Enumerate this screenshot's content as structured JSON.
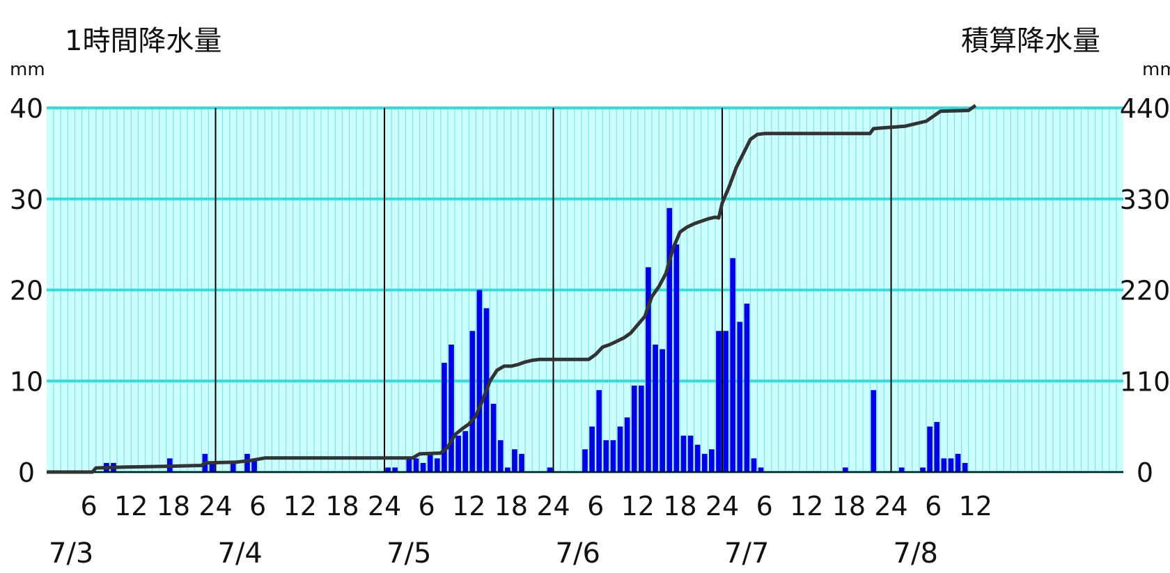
{
  "chart_data": {
    "type": "bar",
    "title_left": "1時間降水量",
    "title_right": "積算降水量",
    "unit_left": "mm",
    "unit_right": "mm",
    "x_hours": 153,
    "y_left": {
      "min": 0,
      "max": 40,
      "ticks": [
        "0",
        "10",
        "20",
        "30",
        "40"
      ]
    },
    "y_right": {
      "min": 0,
      "max": 440,
      "ticks": [
        "0",
        "110",
        "220",
        "330",
        "440"
      ]
    },
    "x_tick_labels": [
      {
        "hour": 6,
        "label": "6"
      },
      {
        "hour": 12,
        "label": "12"
      },
      {
        "hour": 18,
        "label": "18"
      },
      {
        "hour": 24,
        "label": "24"
      },
      {
        "hour": 30,
        "label": "6"
      },
      {
        "hour": 36,
        "label": "12"
      },
      {
        "hour": 42,
        "label": "18"
      },
      {
        "hour": 48,
        "label": "24"
      },
      {
        "hour": 54,
        "label": "6"
      },
      {
        "hour": 60,
        "label": "12"
      },
      {
        "hour": 66,
        "label": "18"
      },
      {
        "hour": 72,
        "label": "24"
      },
      {
        "hour": 78,
        "label": "6"
      },
      {
        "hour": 84,
        "label": "12"
      },
      {
        "hour": 90,
        "label": "18"
      },
      {
        "hour": 96,
        "label": "24"
      },
      {
        "hour": 102,
        "label": "6"
      },
      {
        "hour": 108,
        "label": "12"
      },
      {
        "hour": 114,
        "label": "18"
      },
      {
        "hour": 120,
        "label": "24"
      },
      {
        "hour": 126,
        "label": "6"
      },
      {
        "hour": 132,
        "label": "12"
      }
    ],
    "date_labels": [
      {
        "hour": 0,
        "label": "7/3"
      },
      {
        "hour": 24,
        "label": "7/4"
      },
      {
        "hour": 48,
        "label": "7/5"
      },
      {
        "hour": 72,
        "label": "7/6"
      },
      {
        "hour": 96,
        "label": "7/7"
      },
      {
        "hour": 120,
        "label": "7/8"
      }
    ],
    "day_boundaries": [
      24,
      48,
      72,
      96,
      120
    ],
    "bars": [
      [
        9,
        1.0
      ],
      [
        10,
        1.0
      ],
      [
        18,
        1.5
      ],
      [
        23,
        2.0
      ],
      [
        24,
        1.0
      ],
      [
        27,
        1.0
      ],
      [
        29,
        2.0
      ],
      [
        30,
        1.5
      ],
      [
        49,
        0.5
      ],
      [
        50,
        0.5
      ],
      [
        52,
        1.5
      ],
      [
        53,
        1.5
      ],
      [
        54,
        1.0
      ],
      [
        55,
        2.0
      ],
      [
        56,
        1.5
      ],
      [
        57,
        12.0
      ],
      [
        58,
        14.0
      ],
      [
        59,
        4.0
      ],
      [
        60,
        4.5
      ],
      [
        61,
        15.5
      ],
      [
        62,
        20.0
      ],
      [
        63,
        18.0
      ],
      [
        64,
        7.5
      ],
      [
        65,
        3.5
      ],
      [
        66,
        0.5
      ],
      [
        67,
        2.5
      ],
      [
        68,
        2.0
      ],
      [
        72,
        0.5
      ],
      [
        77,
        2.5
      ],
      [
        78,
        5.0
      ],
      [
        79,
        9.0
      ],
      [
        80,
        3.5
      ],
      [
        81,
        3.5
      ],
      [
        82,
        5.0
      ],
      [
        83,
        6.0
      ],
      [
        84,
        9.5
      ],
      [
        85,
        9.5
      ],
      [
        86,
        22.5
      ],
      [
        87,
        14.0
      ],
      [
        88,
        13.5
      ],
      [
        89,
        29.0
      ],
      [
        90,
        25.0
      ],
      [
        91,
        4.0
      ],
      [
        92,
        4.0
      ],
      [
        93,
        3.0
      ],
      [
        94,
        2.0
      ],
      [
        95,
        2.5
      ],
      [
        96,
        15.5
      ],
      [
        97,
        15.5
      ],
      [
        98,
        23.5
      ],
      [
        99,
        16.5
      ],
      [
        100,
        18.5
      ],
      [
        101,
        1.5
      ],
      [
        102,
        0.5
      ],
      [
        114,
        0.5
      ],
      [
        118,
        9.0
      ],
      [
        122,
        0.5
      ],
      [
        125,
        0.5
      ],
      [
        126,
        5.0
      ],
      [
        127,
        5.5
      ],
      [
        128,
        1.5
      ],
      [
        129,
        1.5
      ],
      [
        130,
        2.0
      ],
      [
        131,
        1.0
      ]
    ],
    "cumulative": [
      [
        0,
        0
      ],
      [
        6.5,
        0
      ],
      [
        7,
        5
      ],
      [
        11,
        6
      ],
      [
        17,
        7
      ],
      [
        22,
        8
      ],
      [
        22.5,
        11
      ],
      [
        27,
        12
      ],
      [
        29,
        14
      ],
      [
        31,
        17
      ],
      [
        52,
        17
      ],
      [
        53,
        22
      ],
      [
        56,
        23
      ],
      [
        57,
        30
      ],
      [
        58,
        45
      ],
      [
        59,
        52
      ],
      [
        60,
        58
      ],
      [
        61,
        68
      ],
      [
        62,
        88
      ],
      [
        63,
        110
      ],
      [
        64,
        123
      ],
      [
        65,
        128
      ],
      [
        66,
        128
      ],
      [
        67,
        130
      ],
      [
        68,
        133
      ],
      [
        69,
        135
      ],
      [
        70,
        136
      ],
      [
        77,
        136
      ],
      [
        78,
        142
      ],
      [
        79,
        151
      ],
      [
        80,
        154
      ],
      [
        81,
        158
      ],
      [
        82,
        162
      ],
      [
        83,
        168
      ],
      [
        84,
        178
      ],
      [
        85,
        188
      ],
      [
        86,
        212
      ],
      [
        87,
        224
      ],
      [
        88,
        240
      ],
      [
        89,
        270
      ],
      [
        90,
        290
      ],
      [
        91,
        296
      ],
      [
        92,
        300
      ],
      [
        93,
        303
      ],
      [
        94,
        306
      ],
      [
        95,
        308
      ],
      [
        95.5,
        307
      ],
      [
        96,
        325
      ],
      [
        97,
        345
      ],
      [
        98,
        368
      ],
      [
        99,
        385
      ],
      [
        100,
        402
      ],
      [
        101,
        408
      ],
      [
        102,
        409
      ],
      [
        117,
        409
      ],
      [
        117.5,
        415
      ],
      [
        122,
        418
      ],
      [
        125,
        424
      ],
      [
        126,
        430
      ],
      [
        127,
        436
      ],
      [
        131,
        437
      ],
      [
        132,
        443
      ]
    ],
    "colors": {
      "background": "#ffffff",
      "plot_background": "#ccffff",
      "gridline": "#33dddd",
      "bar": "#0000e6",
      "cumulative_line": "#333333",
      "day_line": "#000000",
      "hour_line": "#88e0e0"
    },
    "grid": true,
    "legend": "none"
  }
}
